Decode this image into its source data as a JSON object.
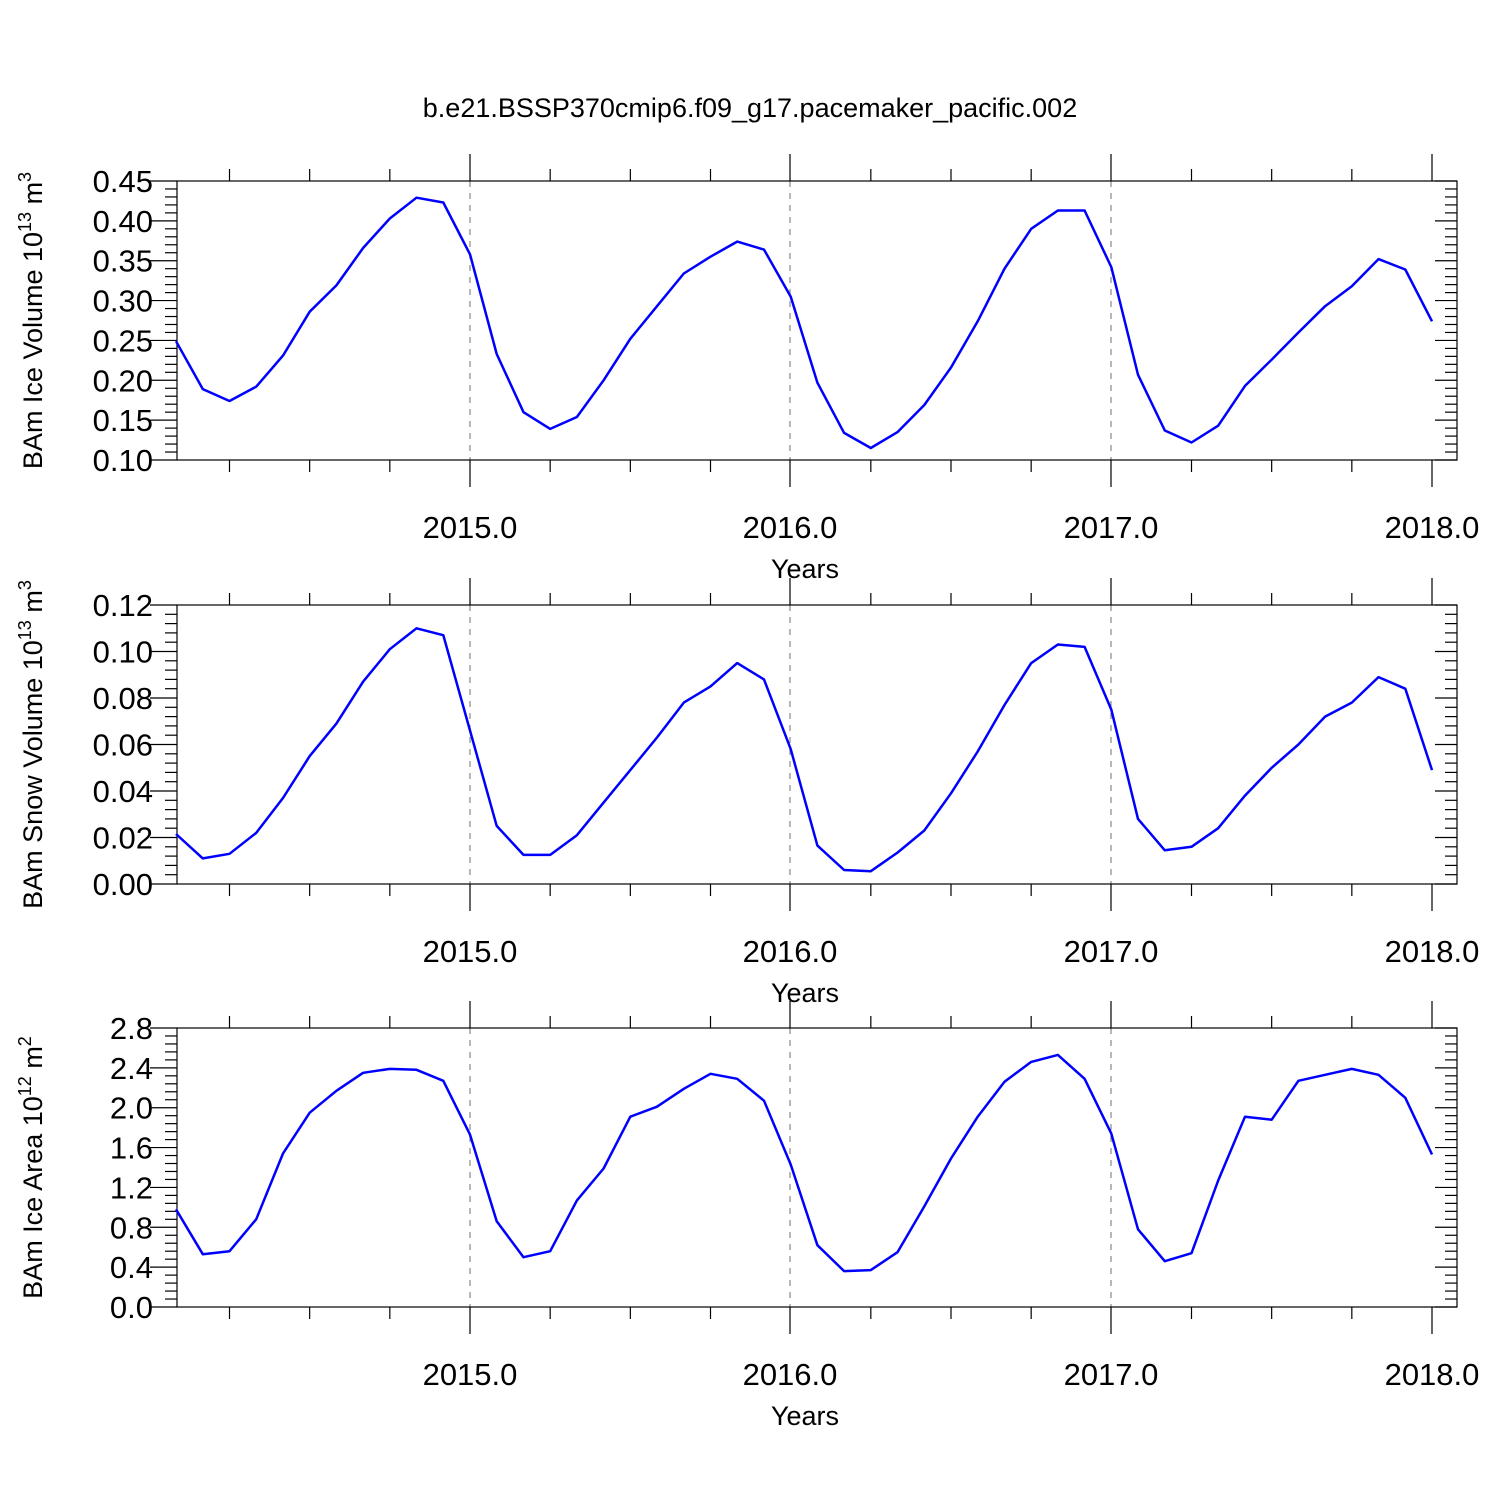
{
  "title": "b.e21.BSSP370cmip6.f09_g17.pacemaker_pacific.002",
  "line_color": "#0000ff",
  "chart_data": [
    {
      "type": "line",
      "ylabel": "BAm Ice Volume 10^13 m^3",
      "ylabel_main": "BAm Ice Volume 10",
      "ylabel_exp": "13",
      "ylabel_unit": " m",
      "ylabel_unit_exp": "3",
      "xlabel": "Years",
      "ylim": [
        0.1,
        0.45
      ],
      "yticks": [
        0.1,
        0.15,
        0.2,
        0.25,
        0.3,
        0.35,
        0.4,
        0.45
      ],
      "ytick_labels": [
        "0.10",
        "0.15",
        "0.20",
        "0.25",
        "0.30",
        "0.35",
        "0.40",
        "0.45"
      ],
      "xlim": [
        2014.0833,
        2018.0
      ],
      "xticks": [
        2015.0,
        2016.0,
        2017.0,
        2018.0
      ],
      "xtick_labels": [
        "2015.0",
        "2016.0",
        "2017.0",
        "2018.0"
      ],
      "x": [
        2014.0833,
        2014.1667,
        2014.25,
        2014.3333,
        2014.4167,
        2014.5,
        2014.5833,
        2014.6667,
        2014.75,
        2014.8333,
        2014.9167,
        2015.0,
        2015.0833,
        2015.1667,
        2015.25,
        2015.3333,
        2015.4167,
        2015.5,
        2015.5833,
        2015.6667,
        2015.75,
        2015.8333,
        2015.9167,
        2016.0,
        2016.0833,
        2016.1667,
        2016.25,
        2016.3333,
        2016.4167,
        2016.5,
        2016.5833,
        2016.6667,
        2016.75,
        2016.8333,
        2016.9167,
        2017.0,
        2017.0833,
        2017.1667,
        2017.25,
        2017.3333,
        2017.4167,
        2017.5,
        2017.5833,
        2017.6667,
        2017.75,
        2017.8333,
        2017.9167,
        2018.0
      ],
      "y": [
        0.249,
        0.189,
        0.174,
        0.192,
        0.231,
        0.286,
        0.319,
        0.366,
        0.403,
        0.429,
        0.423,
        0.358,
        0.233,
        0.16,
        0.139,
        0.154,
        0.2,
        0.252,
        0.293,
        0.334,
        0.355,
        0.374,
        0.364,
        0.305,
        0.197,
        0.134,
        0.115,
        0.135,
        0.169,
        0.216,
        0.274,
        0.34,
        0.39,
        0.413,
        0.413,
        0.342,
        0.207,
        0.137,
        0.122,
        0.143,
        0.193,
        0.226,
        0.26,
        0.293,
        0.318,
        0.352,
        0.339,
        0.274
      ]
    },
    {
      "type": "line",
      "ylabel": "BAm Snow Volume 10^13 m^3",
      "ylabel_main": "BAm Snow Volume 10",
      "ylabel_exp": "13",
      "ylabel_unit": " m",
      "ylabel_unit_exp": "3",
      "xlabel": "Years",
      "ylim": [
        0.0,
        0.12
      ],
      "yticks": [
        0.0,
        0.02,
        0.04,
        0.06,
        0.08,
        0.1,
        0.12
      ],
      "ytick_labels": [
        "0.00",
        "0.02",
        "0.04",
        "0.06",
        "0.08",
        "0.10",
        "0.12"
      ],
      "xlim": [
        2014.0833,
        2018.0
      ],
      "xticks": [
        2015.0,
        2016.0,
        2017.0,
        2018.0
      ],
      "xtick_labels": [
        "2015.0",
        "2016.0",
        "2017.0",
        "2018.0"
      ],
      "x": [
        2014.0833,
        2014.1667,
        2014.25,
        2014.3333,
        2014.4167,
        2014.5,
        2014.5833,
        2014.6667,
        2014.75,
        2014.8333,
        2014.9167,
        2015.0,
        2015.0833,
        2015.1667,
        2015.25,
        2015.3333,
        2015.4167,
        2015.5,
        2015.5833,
        2015.6667,
        2015.75,
        2015.8333,
        2015.9167,
        2016.0,
        2016.0833,
        2016.1667,
        2016.25,
        2016.3333,
        2016.4167,
        2016.5,
        2016.5833,
        2016.6667,
        2016.75,
        2016.8333,
        2016.9167,
        2017.0,
        2017.0833,
        2017.1667,
        2017.25,
        2017.3333,
        2017.4167,
        2017.5,
        2017.5833,
        2017.6667,
        2017.75,
        2017.8333,
        2017.9167,
        2018.0
      ],
      "y": [
        0.0215,
        0.011,
        0.013,
        0.022,
        0.037,
        0.055,
        0.069,
        0.087,
        0.101,
        0.11,
        0.107,
        0.066,
        0.025,
        0.0125,
        0.0125,
        0.021,
        0.035,
        0.049,
        0.063,
        0.078,
        0.085,
        0.095,
        0.088,
        0.058,
        0.0165,
        0.006,
        0.0055,
        0.0135,
        0.023,
        0.039,
        0.057,
        0.077,
        0.095,
        0.103,
        0.102,
        0.075,
        0.028,
        0.0145,
        0.016,
        0.024,
        0.038,
        0.05,
        0.06,
        0.072,
        0.078,
        0.089,
        0.084,
        0.049
      ]
    },
    {
      "type": "line",
      "ylabel": "BAm Ice Area 10^12 m^2",
      "ylabel_main": "BAm Ice Area 10",
      "ylabel_exp": "12",
      "ylabel_unit": " m",
      "ylabel_unit_exp": "2",
      "xlabel": "Years",
      "ylim": [
        0.0,
        2.8
      ],
      "yticks": [
        0.0,
        0.4,
        0.8,
        1.2,
        1.6,
        2.0,
        2.4,
        2.8
      ],
      "ytick_labels": [
        "0.0",
        "0.4",
        "0.8",
        "1.2",
        "1.6",
        "2.0",
        "2.4",
        "2.8"
      ],
      "xlim": [
        2014.0833,
        2018.0
      ],
      "xticks": [
        2015.0,
        2016.0,
        2017.0,
        2018.0
      ],
      "xtick_labels": [
        "2015.0",
        "2016.0",
        "2017.0",
        "2018.0"
      ],
      "x": [
        2014.0833,
        2014.1667,
        2014.25,
        2014.3333,
        2014.4167,
        2014.5,
        2014.5833,
        2014.6667,
        2014.75,
        2014.8333,
        2014.9167,
        2015.0,
        2015.0833,
        2015.1667,
        2015.25,
        2015.3333,
        2015.4167,
        2015.5,
        2015.5833,
        2015.6667,
        2015.75,
        2015.8333,
        2015.9167,
        2016.0,
        2016.0833,
        2016.1667,
        2016.25,
        2016.3333,
        2016.4167,
        2016.5,
        2016.5833,
        2016.6667,
        2016.75,
        2016.8333,
        2016.9167,
        2017.0,
        2017.0833,
        2017.1667,
        2017.25,
        2017.3333,
        2017.4167,
        2017.5,
        2017.5833,
        2017.6667,
        2017.75,
        2017.8333,
        2017.9167,
        2018.0
      ],
      "y": [
        0.98,
        0.53,
        0.56,
        0.88,
        1.54,
        1.95,
        2.17,
        2.35,
        2.39,
        2.38,
        2.27,
        1.73,
        0.86,
        0.5,
        0.56,
        1.07,
        1.39,
        1.91,
        2.01,
        2.19,
        2.34,
        2.29,
        2.07,
        1.43,
        0.62,
        0.36,
        0.37,
        0.55,
        1.01,
        1.49,
        1.91,
        2.26,
        2.46,
        2.53,
        2.29,
        1.74,
        0.78,
        0.46,
        0.54,
        1.27,
        1.91,
        1.88,
        2.27,
        2.33,
        2.39,
        2.33,
        2.1,
        1.53
      ]
    }
  ]
}
